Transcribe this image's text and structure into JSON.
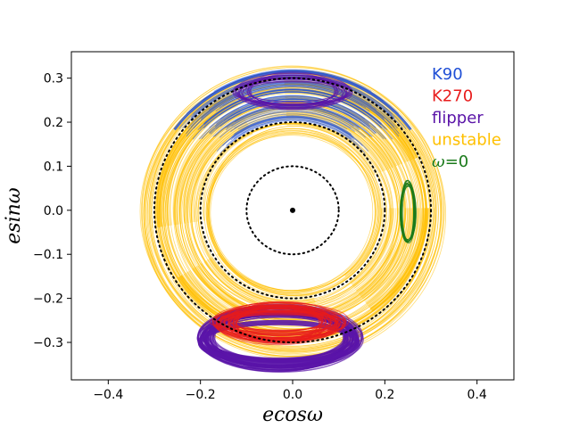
{
  "chart_data": {
    "type": "line",
    "title": "",
    "xlabel": "ecosω",
    "ylabel": "esinω",
    "xlim": [
      -0.48,
      0.48
    ],
    "ylim": [
      -0.385,
      0.36
    ],
    "xticks": [
      -0.4,
      -0.2,
      0.0,
      0.2,
      0.4
    ],
    "xtick_labels": [
      "−0.4",
      "−0.2",
      "0.0",
      "0.2",
      "0.4"
    ],
    "yticks": [
      -0.3,
      -0.2,
      -0.1,
      0.0,
      0.1,
      0.2,
      0.3
    ],
    "ytick_labels": [
      "−0.3",
      "−0.2",
      "−0.1",
      "0.0",
      "0.1",
      "0.2",
      "0.3"
    ],
    "grid": false,
    "legend_position": "top-right",
    "legend": [
      {
        "label": "K90",
        "color": "#1f4fd6"
      },
      {
        "label": "K270",
        "color": "#e81c1c"
      },
      {
        "label": "flipper",
        "color": "#5a14a8"
      },
      {
        "label": "unstable",
        "color": "#ffc000"
      },
      {
        "label": "ω=0",
        "color": "#1a7a1a"
      }
    ],
    "reference_circles": [
      {
        "radius": 0.1,
        "style": "dotted",
        "color": "#000000"
      },
      {
        "radius": 0.2,
        "style": "dotted",
        "color": "#000000"
      },
      {
        "radius": 0.3,
        "style": "dotted",
        "color": "#000000"
      }
    ],
    "center_point": {
      "x": 0.0,
      "y": 0.0
    },
    "series": [
      {
        "name": "unstable",
        "color": "#ffc000",
        "description": "annulus of trajectories between e≈0.18 and e≈0.33",
        "e_min": 0.18,
        "e_max": 0.33
      },
      {
        "name": "K90",
        "color": "#1f4fd6",
        "description": "band around ω=90°",
        "center": [
          0.0,
          0.26
        ],
        "e_min": 0.2,
        "e_max": 0.32
      },
      {
        "name": "flipper",
        "color": "#5a14a8",
        "description": "upper and lower crescents",
        "upper_center": [
          0.0,
          0.27
        ],
        "lower_center": [
          -0.03,
          -0.29
        ]
      },
      {
        "name": "K270",
        "color": "#e81c1c",
        "description": "band around ω=270°",
        "center": [
          -0.03,
          -0.26
        ],
        "e_min": 0.21,
        "e_max": 0.28
      },
      {
        "name": "ω=0",
        "color": "#1a7a1a",
        "description": "small loop near ω=0",
        "center": [
          0.25,
          0.0
        ],
        "x_range": [
          0.235,
          0.268
        ],
        "y_range": [
          -0.075,
          0.065
        ]
      }
    ]
  }
}
